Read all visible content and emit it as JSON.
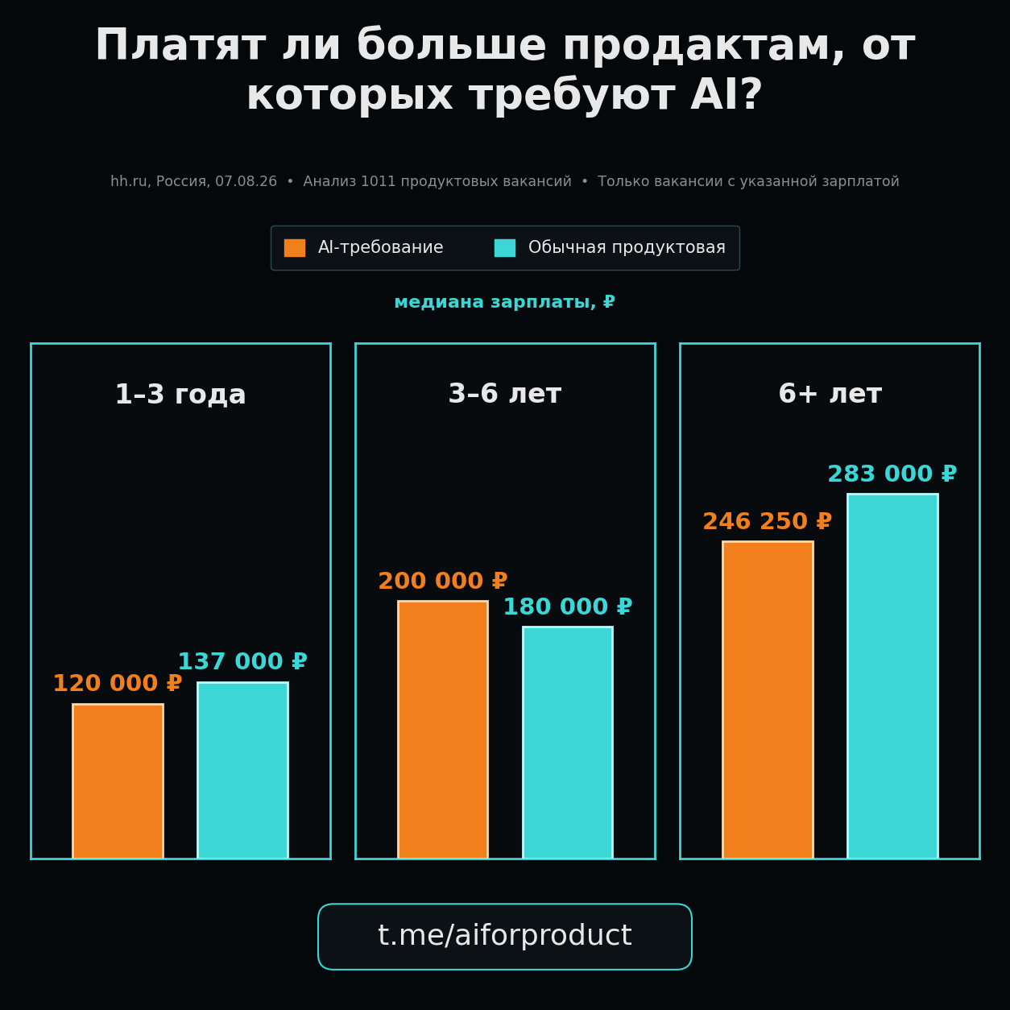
{
  "chart_data": {
    "type": "bar",
    "title": "Платят ли больше продактам, от которых требуют AI?",
    "subtitle": "hh.ru, Россия, 07.08.26  •  Анализ 1011 продуктовых вакансий  •  Только вакансии с указанной зарплатой",
    "y_label": "медиана зарплаты, ₽",
    "annotations": [
      "t.me/aiforproduct"
    ],
    "categories": [
      "1–3 года",
      "3–6 лет",
      "6+ лет"
    ],
    "series": [
      {
        "name": "AI-требование",
        "color": "#f07f1c",
        "values": [
          120000,
          200000,
          246250
        ],
        "value_labels": [
          "120 000 ₽",
          "200 000 ₽",
          "246 250 ₽"
        ]
      },
      {
        "name": "Обычная продуктовая",
        "color": "#3cd6d6",
        "values": [
          137000,
          180000,
          283000
        ],
        "value_labels": [
          "137 000 ₽",
          "180 000 ₽",
          "283 000 ₽"
        ]
      }
    ],
    "ylim": [
      0,
      400000
    ],
    "tick_labels": false,
    "data_labels": true,
    "legend": "upper center",
    "grid": false
  }
}
